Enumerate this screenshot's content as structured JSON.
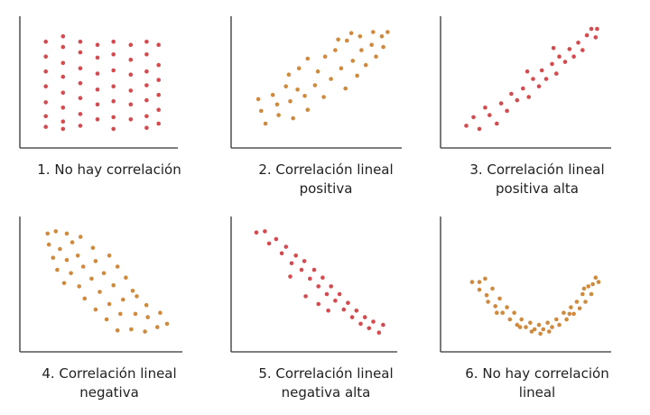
{
  "colors": {
    "red": "#d34a4f",
    "orange": "#cf8a3e",
    "axis": "#333333",
    "text": "#222222"
  },
  "chart_data": [
    {
      "type": "scatter",
      "caption": [
        "1. No hay correlación"
      ],
      "color": "red",
      "xlim": [
        0,
        10
      ],
      "ylim": [
        0,
        10
      ],
      "grid": false,
      "points": [
        [
          1,
          8.8
        ],
        [
          1,
          7.4
        ],
        [
          1,
          6.0
        ],
        [
          1,
          4.6
        ],
        [
          1,
          3.1
        ],
        [
          1,
          1.8
        ],
        [
          1,
          0.8
        ],
        [
          2.3,
          9.3
        ],
        [
          2.3,
          8.3
        ],
        [
          2.3,
          6.8
        ],
        [
          2.3,
          5.5
        ],
        [
          2.3,
          4.0
        ],
        [
          2.3,
          2.6
        ],
        [
          2.3,
          1.3
        ],
        [
          2.3,
          0.6
        ],
        [
          3.6,
          8.8
        ],
        [
          3.6,
          7.8
        ],
        [
          3.6,
          6.3
        ],
        [
          3.6,
          4.9
        ],
        [
          3.6,
          3.5
        ],
        [
          3.6,
          2.0
        ],
        [
          3.6,
          0.9
        ],
        [
          4.9,
          8.5
        ],
        [
          4.9,
          7.3
        ],
        [
          4.9,
          5.8
        ],
        [
          4.9,
          4.3
        ],
        [
          4.9,
          2.9
        ],
        [
          4.9,
          1.5
        ],
        [
          6.1,
          8.8
        ],
        [
          6.1,
          7.6
        ],
        [
          6.1,
          6.1
        ],
        [
          6.1,
          4.6
        ],
        [
          6.1,
          3.2
        ],
        [
          6.1,
          1.7
        ],
        [
          6.1,
          0.6
        ],
        [
          7.4,
          8.5
        ],
        [
          7.4,
          7.1
        ],
        [
          7.4,
          5.7
        ],
        [
          7.4,
          4.2
        ],
        [
          7.4,
          2.9
        ],
        [
          7.4,
          1.5
        ],
        [
          8.6,
          8.8
        ],
        [
          8.6,
          7.6
        ],
        [
          8.6,
          6.0
        ],
        [
          8.6,
          4.7
        ],
        [
          8.6,
          3.3
        ],
        [
          8.6,
          1.8
        ],
        [
          8.6,
          0.7
        ],
        [
          9.5,
          8.5
        ],
        [
          9.5,
          6.6
        ],
        [
          9.5,
          5.2
        ],
        [
          9.5,
          3.8
        ],
        [
          9.5,
          2.4
        ],
        [
          9.5,
          1.1
        ]
      ]
    },
    {
      "type": "scatter",
      "caption": [
        "2. Correlación lineal",
        "positiva"
      ],
      "color": "orange",
      "xlim": [
        0,
        10
      ],
      "ylim": [
        0,
        10
      ],
      "grid": false,
      "points": [
        [
          1.2,
          2.3
        ],
        [
          1.0,
          3.4
        ],
        [
          1.5,
          1.1
        ],
        [
          2.0,
          3.8
        ],
        [
          2.3,
          2.9
        ],
        [
          2.4,
          1.9
        ],
        [
          2.9,
          4.6
        ],
        [
          3.2,
          3.2
        ],
        [
          3.4,
          1.6
        ],
        [
          3.1,
          5.7
        ],
        [
          3.7,
          4.3
        ],
        [
          3.8,
          6.3
        ],
        [
          4.2,
          3.7
        ],
        [
          4.4,
          2.4
        ],
        [
          4.9,
          4.7
        ],
        [
          4.4,
          7.2
        ],
        [
          5.1,
          6.0
        ],
        [
          5.5,
          3.6
        ],
        [
          5.6,
          7.4
        ],
        [
          6.0,
          5.3
        ],
        [
          6.3,
          8.0
        ],
        [
          6.7,
          6.3
        ],
        [
          7.0,
          4.4
        ],
        [
          7.1,
          8.9
        ],
        [
          7.5,
          7.0
        ],
        [
          7.8,
          5.6
        ],
        [
          8.0,
          9.3
        ],
        [
          8.1,
          8.0
        ],
        [
          8.4,
          6.6
        ],
        [
          8.9,
          9.7
        ],
        [
          8.8,
          8.5
        ],
        [
          9.1,
          7.4
        ],
        [
          9.5,
          9.3
        ],
        [
          9.6,
          8.3
        ],
        [
          9.9,
          9.7
        ],
        [
          6.5,
          9.0
        ],
        [
          7.4,
          9.6
        ]
      ]
    },
    {
      "type": "scatter",
      "caption": [
        "3. Correlación lineal",
        "positiva alta"
      ],
      "color": "red",
      "xlim": [
        0,
        10
      ],
      "ylim": [
        0,
        10
      ],
      "grid": false,
      "points": [
        [
          0.9,
          0.9
        ],
        [
          1.4,
          1.7
        ],
        [
          1.8,
          0.6
        ],
        [
          2.2,
          2.6
        ],
        [
          2.5,
          1.9
        ],
        [
          3.0,
          1.1
        ],
        [
          3.3,
          3.0
        ],
        [
          3.7,
          2.3
        ],
        [
          4.0,
          3.9
        ],
        [
          4.4,
          3.3
        ],
        [
          4.8,
          4.4
        ],
        [
          5.2,
          3.6
        ],
        [
          5.5,
          5.3
        ],
        [
          5.9,
          4.6
        ],
        [
          6.1,
          6.1
        ],
        [
          6.4,
          5.3
        ],
        [
          6.8,
          6.7
        ],
        [
          7.1,
          5.8
        ],
        [
          7.3,
          7.4
        ],
        [
          7.7,
          6.9
        ],
        [
          8.0,
          8.1
        ],
        [
          8.3,
          7.4
        ],
        [
          8.6,
          8.7
        ],
        [
          8.9,
          8.0
        ],
        [
          9.2,
          9.4
        ],
        [
          9.5,
          10.0
        ],
        [
          9.9,
          10.0
        ],
        [
          9.8,
          9.2
        ],
        [
          6.9,
          8.2
        ],
        [
          5.1,
          6.0
        ]
      ]
    },
    {
      "type": "scatter",
      "caption": [
        "4. Correlación lineal",
        "negativa"
      ],
      "color": "orange",
      "xlim": [
        0,
        10
      ],
      "ylim": [
        0,
        10
      ],
      "grid": false,
      "points": [
        [
          1.1,
          9.6
        ],
        [
          1.7,
          9.8
        ],
        [
          2.5,
          9.6
        ],
        [
          1.2,
          8.6
        ],
        [
          2.0,
          8.2
        ],
        [
          2.9,
          8.8
        ],
        [
          3.5,
          9.3
        ],
        [
          1.5,
          7.4
        ],
        [
          2.5,
          7.2
        ],
        [
          3.3,
          7.6
        ],
        [
          4.4,
          8.3
        ],
        [
          1.8,
          6.3
        ],
        [
          2.8,
          6.0
        ],
        [
          3.7,
          6.6
        ],
        [
          4.6,
          7.1
        ],
        [
          5.6,
          7.6
        ],
        [
          2.3,
          5.1
        ],
        [
          3.4,
          4.8
        ],
        [
          4.3,
          5.5
        ],
        [
          5.2,
          6.0
        ],
        [
          6.2,
          6.6
        ],
        [
          3.8,
          3.7
        ],
        [
          4.9,
          4.3
        ],
        [
          5.9,
          4.9
        ],
        [
          6.8,
          5.6
        ],
        [
          7.3,
          4.4
        ],
        [
          4.6,
          2.7
        ],
        [
          5.6,
          3.2
        ],
        [
          6.6,
          3.6
        ],
        [
          7.6,
          3.9
        ],
        [
          8.3,
          3.1
        ],
        [
          5.4,
          1.8
        ],
        [
          6.4,
          2.3
        ],
        [
          7.5,
          2.3
        ],
        [
          8.4,
          2.0
        ],
        [
          9.3,
          2.4
        ],
        [
          6.2,
          0.8
        ],
        [
          7.2,
          0.9
        ],
        [
          8.2,
          0.7
        ],
        [
          9.1,
          1.1
        ],
        [
          9.8,
          1.4
        ]
      ]
    },
    {
      "type": "scatter",
      "caption": [
        "5. Correlación lineal",
        "negativa alta"
      ],
      "color": "red",
      "xlim": [
        0,
        10
      ],
      "ylim": [
        0,
        10
      ],
      "grid": false,
      "points": [
        [
          0.9,
          9.7
        ],
        [
          1.5,
          9.8
        ],
        [
          1.8,
          8.7
        ],
        [
          2.3,
          9.1
        ],
        [
          2.7,
          7.8
        ],
        [
          3.0,
          8.4
        ],
        [
          3.4,
          6.9
        ],
        [
          3.7,
          7.6
        ],
        [
          4.1,
          6.3
        ],
        [
          4.3,
          7.1
        ],
        [
          4.7,
          5.5
        ],
        [
          5.0,
          6.3
        ],
        [
          5.3,
          4.8
        ],
        [
          5.6,
          5.6
        ],
        [
          5.9,
          4.1
        ],
        [
          6.2,
          4.8
        ],
        [
          6.5,
          3.5
        ],
        [
          6.8,
          4.1
        ],
        [
          7.1,
          2.7
        ],
        [
          7.4,
          3.3
        ],
        [
          7.7,
          2.0
        ],
        [
          8.0,
          2.6
        ],
        [
          8.3,
          1.4
        ],
        [
          8.6,
          2.0
        ],
        [
          8.9,
          1.0
        ],
        [
          9.2,
          1.6
        ],
        [
          9.6,
          0.6
        ],
        [
          9.9,
          1.3
        ],
        [
          6.0,
          2.6
        ],
        [
          4.4,
          3.9
        ],
        [
          5.3,
          3.2
        ],
        [
          3.3,
          5.7
        ]
      ]
    },
    {
      "type": "scatter",
      "caption": [
        "6. No hay correlación",
        "lineal"
      ],
      "color": "orange",
      "xlim": [
        0,
        10
      ],
      "ylim": [
        0,
        10
      ],
      "grid": false,
      "points": [
        [
          1.3,
          5.2
        ],
        [
          1.8,
          5.2
        ],
        [
          2.2,
          5.5
        ],
        [
          1.8,
          4.5
        ],
        [
          2.3,
          4.0
        ],
        [
          2.7,
          4.6
        ],
        [
          2.4,
          3.4
        ],
        [
          2.9,
          3.0
        ],
        [
          3.2,
          3.7
        ],
        [
          3.4,
          2.4
        ],
        [
          3.7,
          2.9
        ],
        [
          3.9,
          1.8
        ],
        [
          4.2,
          2.4
        ],
        [
          4.4,
          1.3
        ],
        [
          4.7,
          1.8
        ],
        [
          5.0,
          1.1
        ],
        [
          5.3,
          1.5
        ],
        [
          5.6,
          0.9
        ],
        [
          5.9,
          1.3
        ],
        [
          6.2,
          0.9
        ],
        [
          6.5,
          1.5
        ],
        [
          6.8,
          1.1
        ],
        [
          7.1,
          1.8
        ],
        [
          7.3,
          1.3
        ],
        [
          7.6,
          2.4
        ],
        [
          7.8,
          1.8
        ],
        [
          8.1,
          2.9
        ],
        [
          8.3,
          2.3
        ],
        [
          8.5,
          3.4
        ],
        [
          8.7,
          2.8
        ],
        [
          8.9,
          4.1
        ],
        [
          9.1,
          3.4
        ],
        [
          9.3,
          4.8
        ],
        [
          9.5,
          4.1
        ],
        [
          9.8,
          5.6
        ],
        [
          9.6,
          5.0
        ],
        [
          10.0,
          5.2
        ],
        [
          9.0,
          4.6
        ],
        [
          8.0,
          2.3
        ],
        [
          3.0,
          2.4
        ],
        [
          4.6,
          1.1
        ],
        [
          5.4,
          0.7
        ],
        [
          6.0,
          0.5
        ],
        [
          6.6,
          0.7
        ]
      ]
    }
  ]
}
